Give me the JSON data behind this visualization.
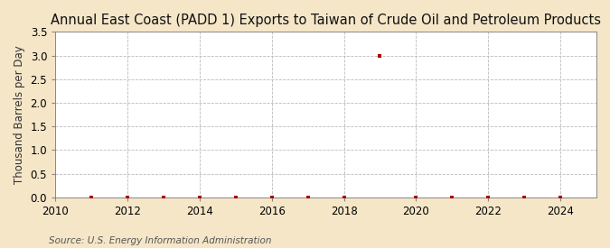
{
  "title": "Annual East Coast (PADD 1) Exports to Taiwan of Crude Oil and Petroleum Products",
  "ylabel": "Thousand Barrels per Day",
  "source": "Source: U.S. Energy Information Administration",
  "fig_bg_color": "#f5e6c8",
  "plot_bg_color": "#ffffff",
  "xlim": [
    2010,
    2025
  ],
  "ylim": [
    0.0,
    3.5
  ],
  "xticks": [
    2010,
    2012,
    2014,
    2016,
    2018,
    2020,
    2022,
    2024
  ],
  "yticks": [
    0.0,
    0.5,
    1.0,
    1.5,
    2.0,
    2.5,
    3.0,
    3.5
  ],
  "data_x": [
    2011,
    2012,
    2013,
    2014,
    2015,
    2016,
    2017,
    2018,
    2019,
    2020,
    2021,
    2022,
    2023,
    2024
  ],
  "data_y": [
    0.0,
    0.0,
    0.0,
    0.0,
    0.0,
    0.0,
    0.0,
    0.0,
    3.0,
    0.0,
    0.0,
    0.0,
    0.0,
    0.0
  ],
  "marker_color": "#aa0000",
  "marker_size": 3.5,
  "title_fontsize": 10.5,
  "tick_fontsize": 8.5,
  "ylabel_fontsize": 8.5,
  "source_fontsize": 7.5
}
